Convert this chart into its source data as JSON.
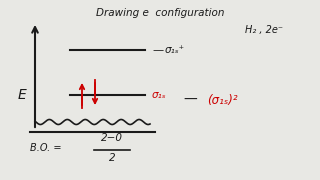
{
  "background_color": "#e8e8e4",
  "title": "Drawing e  configuration",
  "title_fontsize": 7.5,
  "title_color": "#1a1a1a",
  "E_label": "E",
  "H2_label": "H₂ , 2e⁻",
  "sigma_star_label": "σ₁ₛ⁺",
  "sigma_label": "σ₁ₛ",
  "sigma_config_label": "(σ₁ₛ)²",
  "bo_label": "B.O. = ",
  "bo_fraction_num": "2−0",
  "bo_fraction_den": "2",
  "electron_color": "#cc0000",
  "text_color": "#1a1a1a",
  "line_color": "#1a1a1a"
}
